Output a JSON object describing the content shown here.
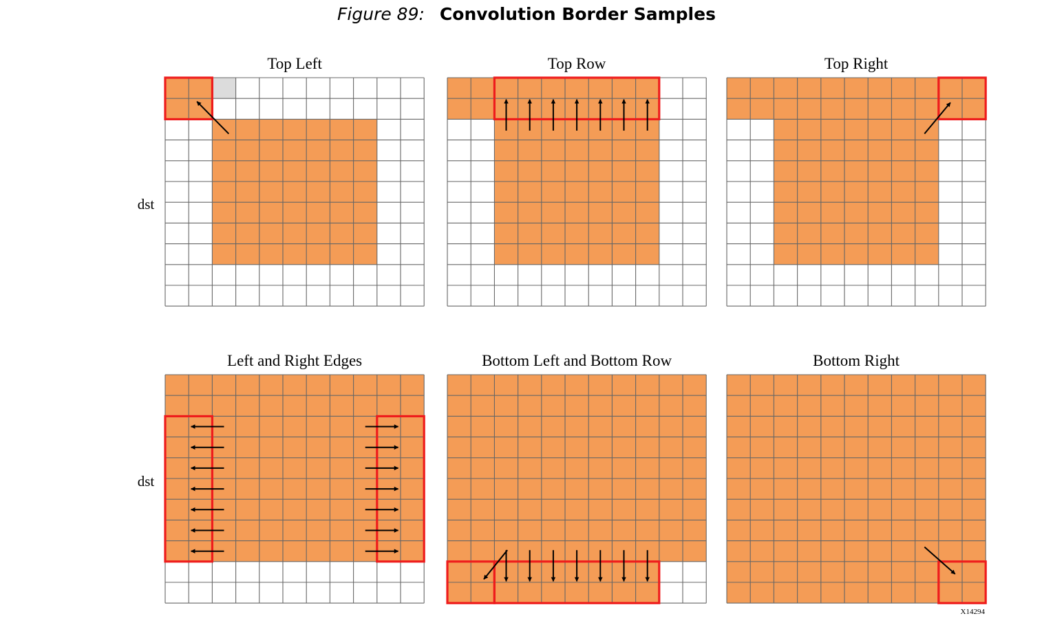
{
  "figure": {
    "number": "Figure 89:",
    "title": "Convolution Border Samples",
    "id_label": "X14294"
  },
  "colors": {
    "fill": "#f49c56",
    "empty": "#ffffff",
    "gray": "#dcdcdc",
    "grid": "#666666",
    "highlight": "#ee1c1c",
    "arrow": "#000000"
  },
  "row_labels": [
    "dst",
    "dst"
  ],
  "grid_size": {
    "cols": 11,
    "rows": 11
  },
  "panels": [
    {
      "title": "Top Left",
      "fills": [
        {
          "c0": 0,
          "r0": 0,
          "c1": 1,
          "r1": 1
        },
        {
          "c0": 2,
          "r0": 2,
          "c1": 8,
          "r1": 8
        }
      ],
      "grays": [
        {
          "c0": 2,
          "r0": 0,
          "c1": 2,
          "r1": 0
        }
      ],
      "highlights": [
        {
          "c0": 0,
          "r0": 0,
          "c1": 1,
          "r1": 1
        }
      ],
      "arrows": [
        {
          "from": [
            2.7,
            2.7
          ],
          "to": [
            1.35,
            1.15
          ]
        }
      ]
    },
    {
      "title": "Top Row",
      "fills": [
        {
          "c0": 0,
          "r0": 0,
          "c1": 8,
          "r1": 1
        },
        {
          "c0": 2,
          "r0": 2,
          "c1": 8,
          "r1": 8
        }
      ],
      "grays": [],
      "highlights": [
        {
          "c0": 2,
          "r0": 0,
          "c1": 8,
          "r1": 1
        }
      ],
      "arrows": [
        {
          "from": [
            2.5,
            2.55
          ],
          "to": [
            2.5,
            1.05
          ]
        },
        {
          "from": [
            3.5,
            2.55
          ],
          "to": [
            3.5,
            1.05
          ]
        },
        {
          "from": [
            4.5,
            2.55
          ],
          "to": [
            4.5,
            1.05
          ]
        },
        {
          "from": [
            5.5,
            2.55
          ],
          "to": [
            5.5,
            1.05
          ]
        },
        {
          "from": [
            6.5,
            2.55
          ],
          "to": [
            6.5,
            1.05
          ]
        },
        {
          "from": [
            7.5,
            2.55
          ],
          "to": [
            7.5,
            1.05
          ]
        },
        {
          "from": [
            8.5,
            2.55
          ],
          "to": [
            8.5,
            1.05
          ]
        }
      ]
    },
    {
      "title": "Top Right",
      "fills": [
        {
          "c0": 0,
          "r0": 0,
          "c1": 10,
          "r1": 1
        },
        {
          "c0": 2,
          "r0": 2,
          "c1": 8,
          "r1": 8
        }
      ],
      "grays": [],
      "highlights": [
        {
          "c0": 9,
          "r0": 0,
          "c1": 10,
          "r1": 1
        }
      ],
      "arrows": [
        {
          "from": [
            8.4,
            2.7
          ],
          "to": [
            9.5,
            1.2
          ]
        }
      ]
    },
    {
      "title": "Left and Right Edges",
      "fills": [
        {
          "c0": 0,
          "r0": 0,
          "c1": 10,
          "r1": 8
        }
      ],
      "grays": [],
      "highlights": [
        {
          "c0": 0,
          "r0": 2,
          "c1": 1,
          "r1": 8
        },
        {
          "c0": 9,
          "r0": 2,
          "c1": 10,
          "r1": 8
        }
      ],
      "arrows": [
        {
          "from": [
            2.5,
            2.5
          ],
          "to": [
            1.1,
            2.5
          ]
        },
        {
          "from": [
            2.5,
            3.5
          ],
          "to": [
            1.1,
            3.5
          ]
        },
        {
          "from": [
            2.5,
            4.5
          ],
          "to": [
            1.1,
            4.5
          ]
        },
        {
          "from": [
            2.5,
            5.5
          ],
          "to": [
            1.1,
            5.5
          ]
        },
        {
          "from": [
            2.5,
            6.5
          ],
          "to": [
            1.1,
            6.5
          ]
        },
        {
          "from": [
            2.5,
            7.5
          ],
          "to": [
            1.1,
            7.5
          ]
        },
        {
          "from": [
            2.5,
            8.5
          ],
          "to": [
            1.1,
            8.5
          ]
        },
        {
          "from": [
            8.5,
            2.5
          ],
          "to": [
            9.9,
            2.5
          ]
        },
        {
          "from": [
            8.5,
            3.5
          ],
          "to": [
            9.9,
            3.5
          ]
        },
        {
          "from": [
            8.5,
            4.5
          ],
          "to": [
            9.9,
            4.5
          ]
        },
        {
          "from": [
            8.5,
            5.5
          ],
          "to": [
            9.9,
            5.5
          ]
        },
        {
          "from": [
            8.5,
            6.5
          ],
          "to": [
            9.9,
            6.5
          ]
        },
        {
          "from": [
            8.5,
            7.5
          ],
          "to": [
            9.9,
            7.5
          ]
        },
        {
          "from": [
            8.5,
            8.5
          ],
          "to": [
            9.9,
            8.5
          ]
        }
      ]
    },
    {
      "title": "Bottom Left and Bottom Row",
      "fills": [
        {
          "c0": 0,
          "r0": 0,
          "c1": 10,
          "r1": 8
        },
        {
          "c0": 0,
          "r0": 9,
          "c1": 8,
          "r1": 10
        }
      ],
      "grays": [],
      "highlights": [
        {
          "c0": 0,
          "r0": 9,
          "c1": 1,
          "r1": 10
        },
        {
          "c0": 2,
          "r0": 9,
          "c1": 8,
          "r1": 10
        }
      ],
      "arrows": [
        {
          "from": [
            2.55,
            8.45
          ],
          "to": [
            1.55,
            9.85
          ]
        },
        {
          "from": [
            2.5,
            8.45
          ],
          "to": [
            2.5,
            9.95
          ]
        },
        {
          "from": [
            3.5,
            8.45
          ],
          "to": [
            3.5,
            9.95
          ]
        },
        {
          "from": [
            4.5,
            8.45
          ],
          "to": [
            4.5,
            9.95
          ]
        },
        {
          "from": [
            5.5,
            8.45
          ],
          "to": [
            5.5,
            9.95
          ]
        },
        {
          "from": [
            6.5,
            8.45
          ],
          "to": [
            6.5,
            9.95
          ]
        },
        {
          "from": [
            7.5,
            8.45
          ],
          "to": [
            7.5,
            9.95
          ]
        },
        {
          "from": [
            8.5,
            8.45
          ],
          "to": [
            8.5,
            9.95
          ]
        }
      ]
    },
    {
      "title": "Bottom Right",
      "fills": [
        {
          "c0": 0,
          "r0": 0,
          "c1": 10,
          "r1": 10
        }
      ],
      "grays": [],
      "highlights": [
        {
          "c0": 9,
          "r0": 9,
          "c1": 10,
          "r1": 10
        }
      ],
      "arrows": [
        {
          "from": [
            8.4,
            8.3
          ],
          "to": [
            9.7,
            9.6
          ]
        }
      ]
    }
  ]
}
